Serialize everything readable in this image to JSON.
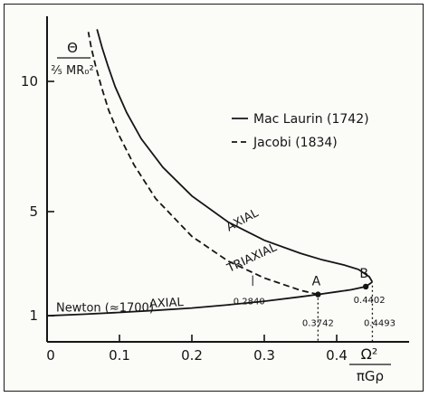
{
  "chart_data": {
    "type": "line",
    "title": "",
    "xlabel": "Ω² / πGρ",
    "ylabel": "Θ / (2/5)MR₀²",
    "xlim": [
      0,
      0.5
    ],
    "ylim": [
      0,
      12.5
    ],
    "x_ticks": [
      "0",
      "0.1",
      "0.2",
      "0.3",
      "0.4"
    ],
    "y_ticks": [
      "1",
      "5",
      "10"
    ],
    "grid": false,
    "legend": {
      "placement": "right",
      "entries": [
        {
          "label": "Mac Laurin (1742)",
          "style": "solid"
        },
        {
          "label": "Jacobi (1834)",
          "style": "dashed"
        }
      ]
    },
    "series": [
      {
        "name": "Mac Laurin (1742)",
        "style": "solid",
        "segments": [
          {
            "label": "AXIAL",
            "x": [
              0.0,
              0.05,
              0.1,
              0.15,
              0.2,
              0.25,
              0.3,
              0.35,
              0.3742,
              0.4,
              0.42,
              0.4402,
              0.4493
            ],
            "y": [
              1.0,
              1.06,
              1.13,
              1.21,
              1.3,
              1.42,
              1.56,
              1.73,
              1.82,
              1.92,
              2.0,
              2.12,
              2.3
            ]
          },
          {
            "label": "AXIAL",
            "x": [
              0.4493,
              0.445,
              0.43,
              0.41,
              0.38,
              0.35,
              0.3,
              0.25,
              0.2,
              0.16,
              0.13,
              0.11,
              0.094,
              0.084,
              0.076,
              0.069
            ],
            "y": [
              2.3,
              2.5,
              2.78,
              2.95,
              3.15,
              3.4,
              3.9,
              4.6,
              5.6,
              6.7,
              7.8,
              8.8,
              9.8,
              10.6,
              11.3,
              12.0
            ]
          }
        ]
      },
      {
        "name": "Jacobi (1834)",
        "style": "dashed",
        "label": "TRIAXIAL",
        "x": [
          0.3742,
          0.35,
          0.3,
          0.25,
          0.2,
          0.15,
          0.12,
          0.1,
          0.085,
          0.075,
          0.067,
          0.061,
          0.057
        ],
        "y": [
          1.82,
          1.98,
          2.45,
          3.1,
          4.05,
          5.5,
          6.8,
          7.9,
          8.9,
          9.8,
          10.6,
          11.3,
          11.9
        ]
      }
    ],
    "annotations": [
      {
        "text": "Newton (≈1700)",
        "near": "left of AXIAL lower branch"
      },
      {
        "text": "A",
        "x": 0.3742,
        "y": 1.82,
        "kind": "point"
      },
      {
        "text": "B",
        "x": 0.4402,
        "y": 2.12,
        "kind": "point"
      },
      {
        "text": "0.2840",
        "x": 0.284,
        "kind": "value-label"
      },
      {
        "text": "0.4402",
        "x": 0.4402,
        "kind": "value-label"
      },
      {
        "text": "0.3742",
        "x": 0.3742,
        "kind": "axis-mark"
      },
      {
        "text": "0.4493",
        "x": 0.4493,
        "kind": "axis-mark"
      }
    ]
  }
}
